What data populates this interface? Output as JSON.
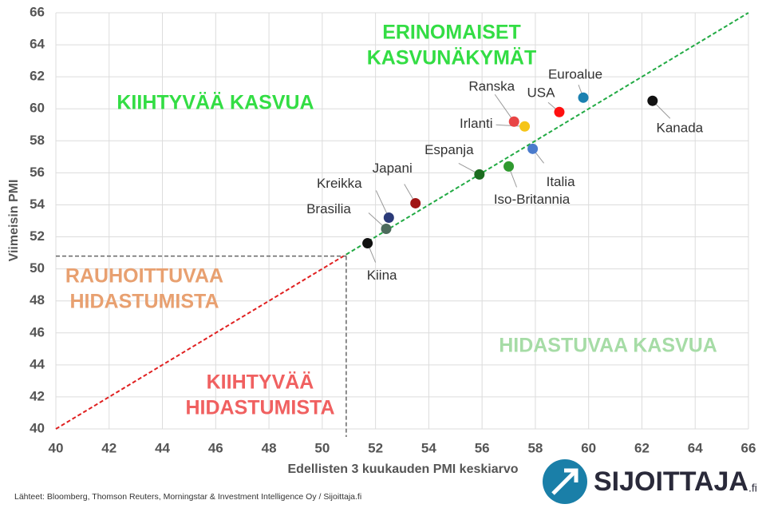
{
  "chart_data": {
    "type": "scatter",
    "x_label": "Edellisten 3 kuukauden PMI keskiarvo",
    "y_label": "Viimeisin PMI",
    "xlim": [
      40,
      66
    ],
    "xticks": [
      40,
      42,
      44,
      46,
      48,
      50,
      52,
      54,
      56,
      58,
      60,
      62,
      64,
      66
    ],
    "ylim": [
      40,
      66
    ],
    "yticks": [
      40,
      42,
      44,
      46,
      48,
      50,
      52,
      54,
      56,
      58,
      60,
      62,
      64,
      66
    ],
    "grid": true,
    "reference_lines": {
      "x": 50.9,
      "y": 50.8
    },
    "series": [
      {
        "name": "Kiina",
        "color": "#111111",
        "x": [
          51.7
        ],
        "values": [
          51.6
        ]
      },
      {
        "name": "Brasilia",
        "color": "#4d6b5c",
        "x": [
          52.4
        ],
        "values": [
          52.5
        ]
      },
      {
        "name": "Kreikka",
        "color": "#2b3a78",
        "x": [
          52.5
        ],
        "values": [
          53.2
        ]
      },
      {
        "name": "Japani",
        "color": "#a11414",
        "x": [
          53.5
        ],
        "values": [
          54.1
        ]
      },
      {
        "name": "Espanja",
        "color": "#1b6b1f",
        "x": [
          55.9
        ],
        "values": [
          55.9
        ]
      },
      {
        "name": "Iso-Britannia",
        "color": "#2f9a2f",
        "x": [
          57.0
        ],
        "values": [
          56.4
        ]
      },
      {
        "name": "Italia",
        "color": "#4a7bcc",
        "x": [
          57.9
        ],
        "values": [
          57.5
        ]
      },
      {
        "name": "Irlanti",
        "color": "#f5c518",
        "x": [
          57.6
        ],
        "values": [
          58.9
        ]
      },
      {
        "name": "Ranska",
        "color": "#e84545",
        "x": [
          57.2
        ],
        "values": [
          59.2
        ]
      },
      {
        "name": "USA",
        "color": "#ff1010",
        "x": [
          58.9
        ],
        "values": [
          59.8
        ]
      },
      {
        "name": "Euroalue",
        "color": "#1a80b0",
        "x": [
          59.8
        ],
        "values": [
          60.7
        ]
      },
      {
        "name": "Kanada",
        "color": "#111111",
        "x": [
          62.4
        ],
        "values": [
          60.5
        ]
      }
    ],
    "annotations": [
      {
        "text": [
          "KIIHTYVÄÄ KASVUA"
        ],
        "color": "#33dd44"
      },
      {
        "text": [
          "ERINOMAISET",
          "KASVUNÄKYMÄT"
        ],
        "color": "#33dd44"
      },
      {
        "text": [
          "RAUHOITTUVAA",
          "HIDASTUMISTA"
        ],
        "color": "#e8a070"
      },
      {
        "text": [
          "KIIHTYVÄÄ",
          "HIDASTUMISTA"
        ],
        "color": "#f06060"
      },
      {
        "text": [
          "HIDASTUVAA KASVUA"
        ],
        "color": "#a6dca6"
      }
    ]
  },
  "footer": {
    "source": "Lähteet: Bloomberg, Thomson Reuters, Morningstar & Investment Intelligence Oy / Sijoittaja.fi",
    "logo": "SIJOITTAJA",
    "logo_suffix": ".fi"
  }
}
